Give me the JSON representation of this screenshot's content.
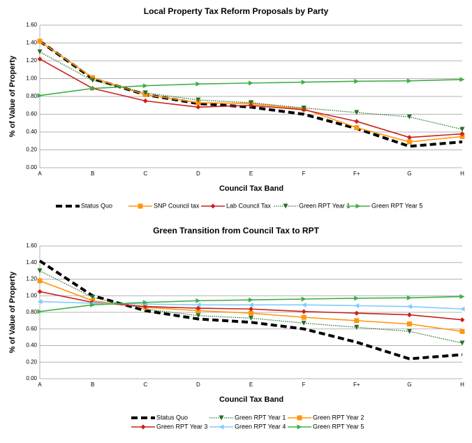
{
  "chart_data": [
    {
      "type": "line",
      "title": "Local Property Tax Reform Proposals by Party",
      "x_label": "Council Tax Band",
      "y_label": "% of Value of Property",
      "categories": [
        "A",
        "B",
        "C",
        "D",
        "E",
        "F",
        "F+",
        "G",
        "H"
      ],
      "ylim": [
        0,
        1.6
      ],
      "yticks": [
        {
          "value": 0,
          "label": "0.00"
        },
        {
          "value": 0.2,
          "label": "0.20"
        },
        {
          "value": 0.4,
          "label": "0.40"
        },
        {
          "value": 0.6,
          "label": "0.60"
        },
        {
          "value": 0.8,
          "label": "0.80"
        },
        {
          "value": 1.0,
          "label": "1.00"
        },
        {
          "value": 1.2,
          "label": "1.20"
        },
        {
          "value": 1.4,
          "label": "1.40"
        },
        {
          "value": 1.6,
          "label": "1.60"
        }
      ],
      "grid": true,
      "series": [
        {
          "name": "Status Quo",
          "color": "#000000",
          "line_style": "dashed",
          "marker": "none",
          "values": [
            1.42,
            1.0,
            0.82,
            0.72,
            0.68,
            0.6,
            0.44,
            0.24,
            0.29
          ]
        },
        {
          "name": "SNP Council tax",
          "color": "#ff950e",
          "line_style": "solid",
          "marker": "square",
          "values": [
            1.42,
            1.01,
            0.82,
            0.73,
            0.72,
            0.66,
            0.45,
            0.29,
            0.35
          ]
        },
        {
          "name": "Lab Council Tax",
          "color": "#c9211e",
          "line_style": "solid",
          "marker": "diamond",
          "values": [
            1.22,
            0.89,
            0.75,
            0.68,
            0.7,
            0.65,
            0.52,
            0.34,
            0.38
          ]
        },
        {
          "name": "Green RPT Year 1",
          "color": "#2a6e2a",
          "line_style": "dotted",
          "marker": "triangle-down",
          "values": [
            1.3,
            0.98,
            0.84,
            0.76,
            0.73,
            0.67,
            0.62,
            0.57,
            0.43
          ]
        },
        {
          "name": "Green RPT Year 5",
          "color": "#3faf46",
          "line_style": "solid",
          "marker": "triangle-right",
          "values": [
            0.81,
            0.89,
            0.92,
            0.94,
            0.95,
            0.96,
            0.97,
            0.975,
            0.99
          ]
        }
      ]
    },
    {
      "type": "line",
      "title": "Green Transition from Council Tax to RPT",
      "x_label": "Council Tax Band",
      "y_label": "% of Value of Property",
      "categories": [
        "A",
        "B",
        "C",
        "D",
        "E",
        "F",
        "F+",
        "G",
        "H"
      ],
      "ylim": [
        0,
        1.6
      ],
      "yticks": [
        {
          "value": 0,
          "label": "0.00"
        },
        {
          "value": 0.2,
          "label": "0.20"
        },
        {
          "value": 0.4,
          "label": "0.40"
        },
        {
          "value": 0.6,
          "label": "0.60"
        },
        {
          "value": 0.8,
          "label": "0.80"
        },
        {
          "value": 1.0,
          "label": "1.00"
        },
        {
          "value": 1.2,
          "label": "1.20"
        },
        {
          "value": 1.4,
          "label": "1.40"
        },
        {
          "value": 1.6,
          "label": "1.60"
        }
      ],
      "grid": true,
      "series": [
        {
          "name": "Status Quo",
          "color": "#000000",
          "line_style": "dashed",
          "marker": "none",
          "values": [
            1.42,
            1.0,
            0.82,
            0.72,
            0.68,
            0.6,
            0.44,
            0.24,
            0.29
          ]
        },
        {
          "name": "Green RPT Year 1",
          "color": "#2a6e2a",
          "line_style": "dotted",
          "marker": "triangle-down",
          "values": [
            1.3,
            0.98,
            0.84,
            0.76,
            0.73,
            0.67,
            0.62,
            0.57,
            0.43
          ]
        },
        {
          "name": "Green RPT Year 2",
          "color": "#ff950e",
          "line_style": "solid",
          "marker": "square",
          "values": [
            1.18,
            0.94,
            0.86,
            0.82,
            0.79,
            0.74,
            0.7,
            0.66,
            0.57
          ]
        },
        {
          "name": "Green RPT Year 3",
          "color": "#c9211e",
          "line_style": "solid",
          "marker": "diamond",
          "values": [
            1.05,
            0.92,
            0.87,
            0.85,
            0.84,
            0.81,
            0.79,
            0.77,
            0.71
          ]
        },
        {
          "name": "Green RPT Year 4",
          "color": "#83caff",
          "line_style": "solid",
          "marker": "triangle-left",
          "values": [
            0.93,
            0.91,
            0.9,
            0.89,
            0.89,
            0.89,
            0.88,
            0.87,
            0.84
          ]
        },
        {
          "name": "Green RPT Year 5",
          "color": "#3faf46",
          "line_style": "solid",
          "marker": "triangle-right",
          "values": [
            0.81,
            0.89,
            0.92,
            0.94,
            0.95,
            0.96,
            0.97,
            0.975,
            0.99
          ]
        }
      ]
    }
  ]
}
